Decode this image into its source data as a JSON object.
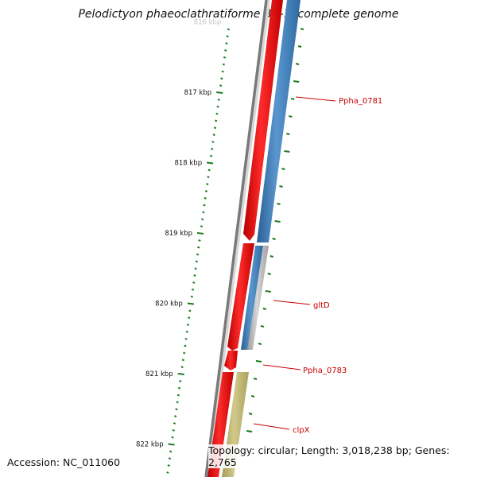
{
  "title": "Pelodictyon phaeoclathratiforme BU-1, complete genome",
  "accession_text": "Accession: NC_011060",
  "topology_text": "Topology: circular; Length: 3,018,238 bp; Genes: 2,765",
  "scale": {
    "tick_labels": [
      {
        "kbp": 816,
        "text": "816 kbp"
      },
      {
        "kbp": 817,
        "text": "817 kbp"
      },
      {
        "kbp": 818,
        "text": "818 kbp"
      },
      {
        "kbp": 819,
        "text": "819 kbp"
      },
      {
        "kbp": 820,
        "text": "820 kbp"
      },
      {
        "kbp": 821,
        "text": "821 kbp"
      },
      {
        "kbp": 822,
        "text": "822 kbp"
      }
    ]
  },
  "gene_labels": [
    {
      "name": "Ppha_0781",
      "id": "ppha-0781"
    },
    {
      "name": "gltD",
      "id": "gltd"
    },
    {
      "name": "Ppha_0783",
      "id": "ppha-0783"
    },
    {
      "name": "clpX",
      "id": "clpx"
    }
  ],
  "colors": {
    "backbone": "#7a7a7a",
    "reverse_strand": "#ee0000",
    "forward_blue": "#3b78b4",
    "forward_gray": "#aaaaaa",
    "forward_olive": "#bcb26c",
    "ticks": "#1e7a1e",
    "gene_label": "#cc0000"
  }
}
